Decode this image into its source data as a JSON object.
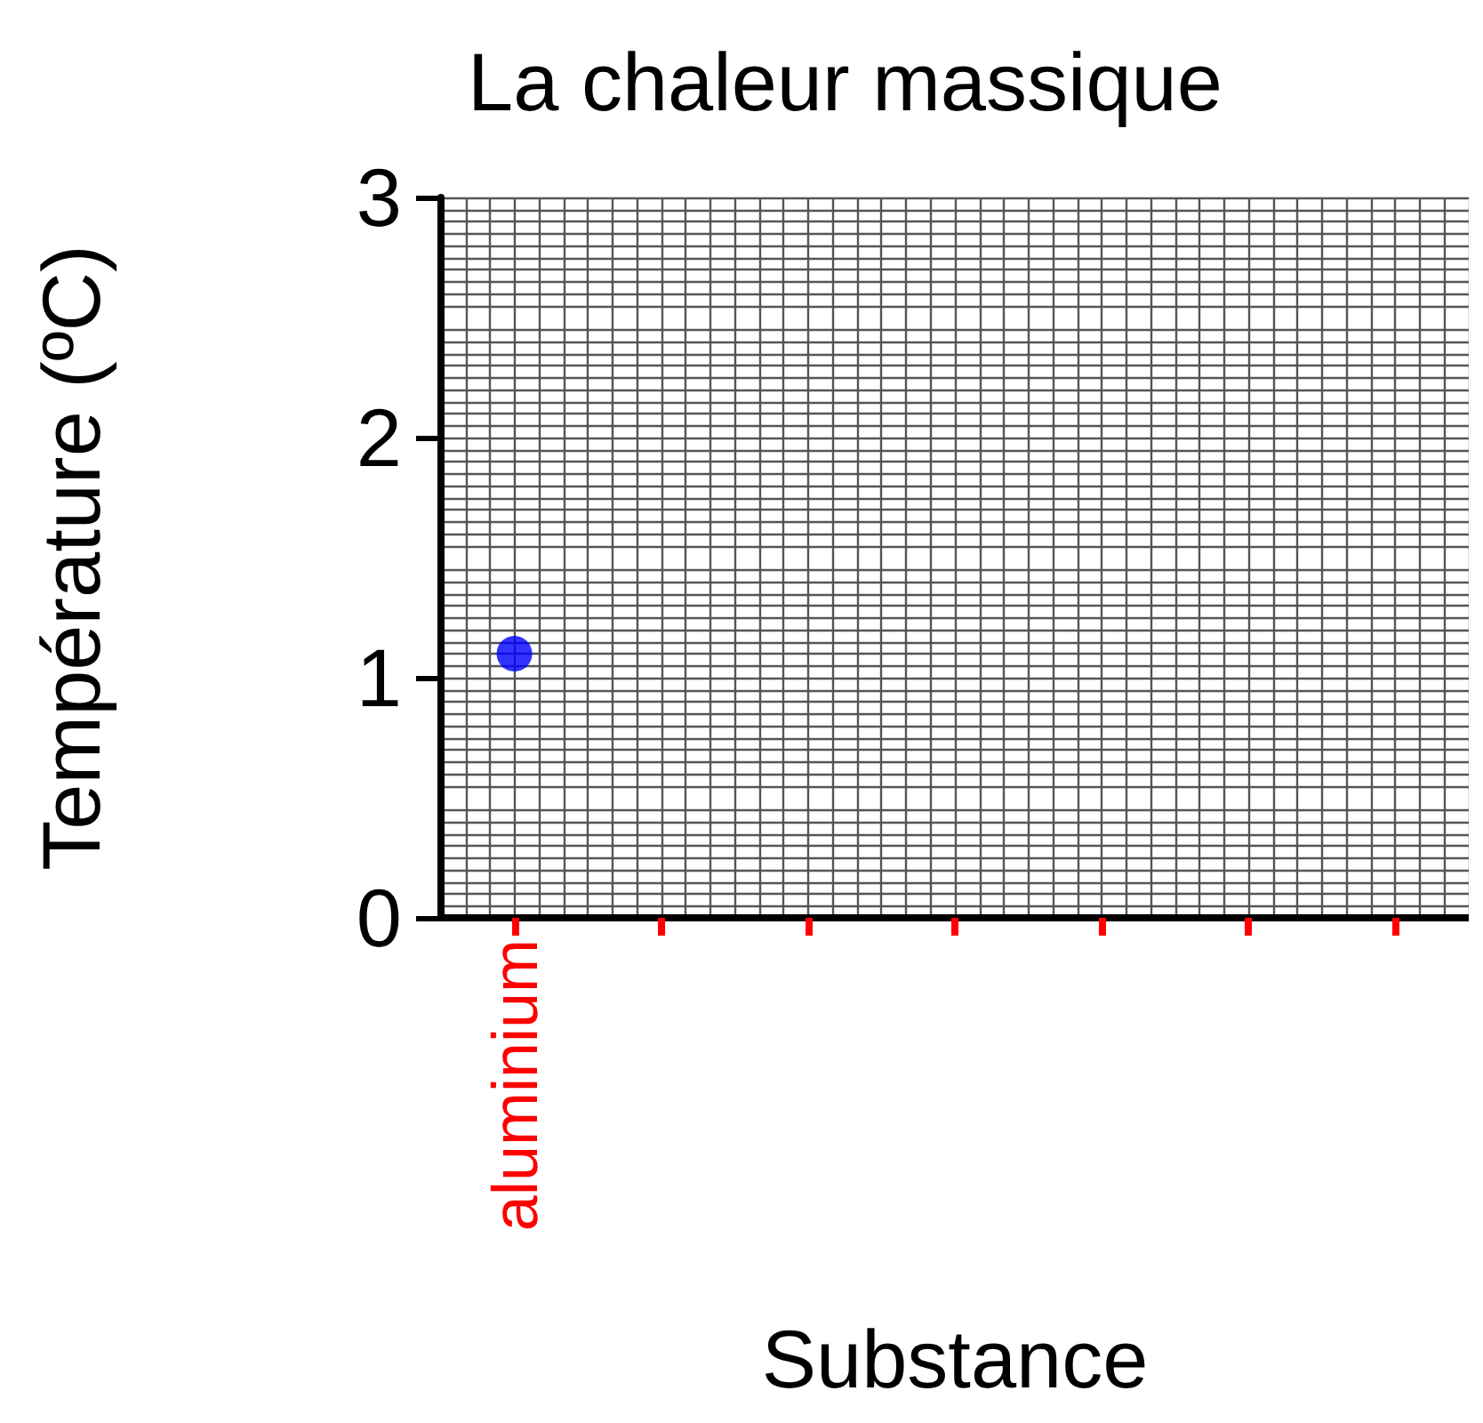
{
  "chart_data": {
    "type": "scatter",
    "title": "La chaleur massique",
    "xlabel": "Substance",
    "ylabel": "Température (ºC)",
    "categories": [
      "aluminium",
      null,
      null,
      null,
      null,
      null,
      null
    ],
    "series": [
      {
        "color": "#0000ff",
        "values": [
          1.1,
          null,
          null,
          null,
          null,
          null,
          null
        ]
      }
    ],
    "ylim": [
      0,
      3
    ],
    "yticks": [
      0,
      1,
      2,
      3
    ],
    "grid": true,
    "marker": "circle"
  }
}
